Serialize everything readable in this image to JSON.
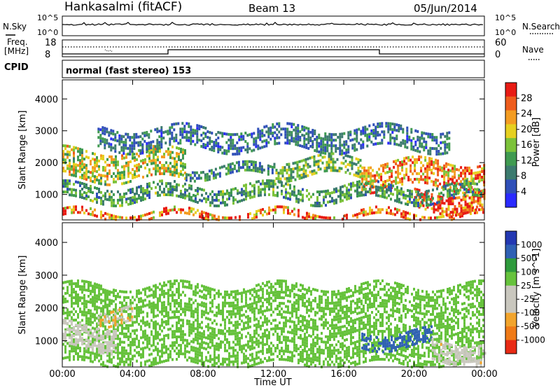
{
  "header": {
    "station": "Hankasalmi (fitACF)",
    "beam": "Beam 13",
    "date": "05/Jun/2014",
    "cpid": "normal (fast stereo) 153"
  },
  "strips": {
    "nsky_label": "N.Sky",
    "nsearch_label": "N.Search",
    "noise_ticks": [
      "10^5",
      "10^0"
    ],
    "freq_label_1": "Freq.",
    "freq_label_2": "[MHz]",
    "freq_ticks": [
      "18",
      "8"
    ],
    "nave_label": "Nave",
    "nave_ticks": [
      "60",
      "0"
    ],
    "cpid_label": "CPID"
  },
  "colors": {
    "power_scale": [
      "#2a2aff",
      "#2f4fb8",
      "#3b7a6e",
      "#3f9a50",
      "#7cc23a",
      "#e6d020",
      "#f39c22",
      "#ee5c1c",
      "#e81b14"
    ],
    "velocity_scale": [
      "#2338b2",
      "#2f60b4",
      "#2e9a3c",
      "#66c23c",
      "#c9c7be",
      "#c9c7be",
      "#f2a42c",
      "#ef7a17",
      "#e82a14"
    ]
  },
  "chart_data": [
    {
      "type": "heatmap",
      "panel": "power",
      "ylabel": "Slant Range [km]",
      "ylim": [
        200,
        4600
      ],
      "yticks": [
        "1000",
        "2000",
        "3000",
        "4000"
      ],
      "xlim": [
        "00:00",
        "24:00"
      ],
      "colorbar": {
        "label": "Power [dB]",
        "ticks": [
          "4",
          "8",
          "12",
          "16",
          "20",
          "24",
          "28"
        ],
        "range": [
          0,
          32
        ]
      },
      "bands": [
        {
          "t": [
            0,
            24
          ],
          "r": [
            280,
            480
          ],
          "value": 26
        },
        {
          "t": [
            0,
            7
          ],
          "r": [
            1500,
            2400
          ],
          "value": 18
        },
        {
          "t": [
            7,
            12
          ],
          "r": [
            1550,
            1900
          ],
          "value": 10
        },
        {
          "t": [
            12,
            17
          ],
          "r": [
            1600,
            2150
          ],
          "value": 14
        },
        {
          "t": [
            17,
            24
          ],
          "r": [
            1200,
            2050
          ],
          "value": 24
        },
        {
          "t": [
            20,
            24
          ],
          "r": [
            500,
            1100
          ],
          "value": 28
        },
        {
          "t": [
            2,
            22
          ],
          "r": [
            2400,
            3100
          ],
          "value": 8
        },
        {
          "t": [
            0,
            24
          ],
          "r": [
            800,
            1300
          ],
          "value": 12
        }
      ]
    },
    {
      "type": "heatmap",
      "panel": "velocity",
      "ylabel": "Slant Range [km]",
      "ylim": [
        200,
        4600
      ],
      "yticks": [
        "1000",
        "2000",
        "3000",
        "4000"
      ],
      "xticks": [
        "00:00",
        "04:00",
        "08:00",
        "12:00",
        "16:00",
        "20:00",
        "00:00"
      ],
      "xlabel": "Time UT",
      "xlim": [
        "00:00",
        "24:00"
      ],
      "colorbar": {
        "label": "Velocity [m s^-1]",
        "ticks": [
          "1000",
          "500",
          "100",
          "25",
          "-25",
          "-100",
          "-500",
          "-1000"
        ],
        "range": [
          -1000,
          1000
        ]
      },
      "bands": [
        {
          "t": [
            0,
            24
          ],
          "r": [
            300,
            2700
          ],
          "value": 0
        },
        {
          "t": [
            0,
            3
          ],
          "r": [
            800,
            1500
          ],
          "value": -300
        },
        {
          "t": [
            2,
            4
          ],
          "r": [
            1500,
            2000
          ],
          "value": -500
        },
        {
          "t": [
            17,
            21
          ],
          "r": [
            800,
            1300
          ],
          "value": 150
        },
        {
          "t": [
            21,
            24
          ],
          "r": [
            400,
            1000
          ],
          "value": -400
        }
      ]
    }
  ]
}
